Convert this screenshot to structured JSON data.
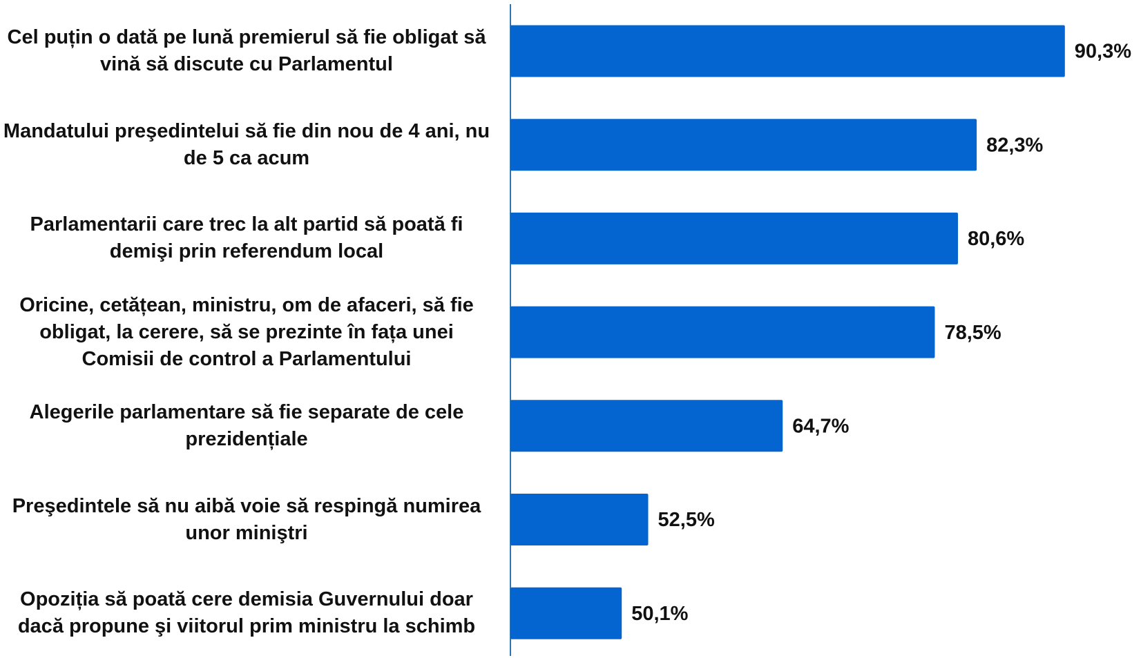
{
  "chart_data": {
    "type": "bar",
    "orientation": "horizontal",
    "categories": [
      "Cel puțin o dată pe lună premierul să fie obligat să vină să discute cu Parlamentul",
      "Mandatului  preşedintelui să fie din nou de 4 ani, nu de 5 ca acum",
      "Parlamentarii care trec la alt partid să poată fi demişi prin referendum local",
      "Oricine, cetățean, ministru, om de afaceri, să fie obligat, la cerere, să se prezinte în fața unei Comisii de control a Parlamentului",
      "Alegerile parlamentare să fie separate de cele prezidențiale",
      "Preşedintele să nu aibă voie să respingă numirea unor miniştri",
      "Opoziția să poată cere demisia Guvernului doar dacă propune şi viitorul  prim ministru la schimb"
    ],
    "values": [
      90.3,
      82.3,
      80.6,
      78.5,
      64.7,
      52.5,
      50.1
    ],
    "value_labels": [
      "90,3%",
      "82,3%",
      "80,6%",
      "78,5%",
      "64,7%",
      "52,5%",
      "50,1%"
    ],
    "color": "#0565d0",
    "xlim": [
      40,
      95
    ]
  }
}
